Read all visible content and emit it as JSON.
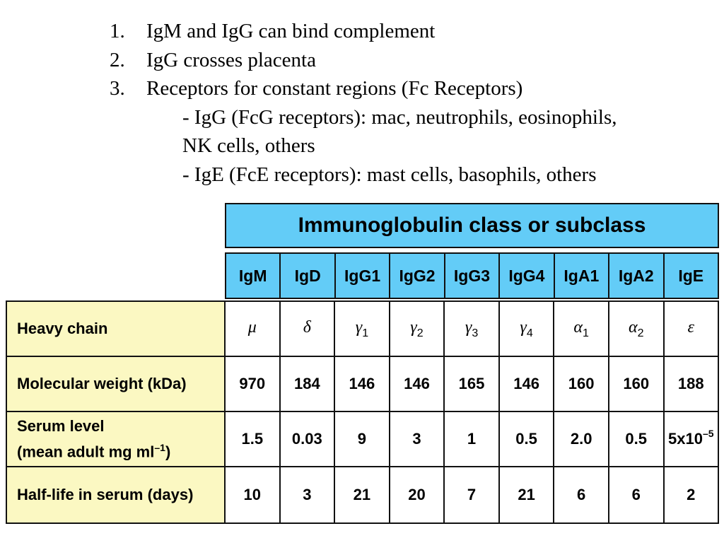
{
  "bullets": [
    {
      "num": "1.",
      "text": "IgM and IgG can bind complement"
    },
    {
      "num": "2.",
      "text": "IgG crosses placenta"
    },
    {
      "num": "3.",
      "text": "Receptors for constant regions (Fc Receptors)"
    }
  ],
  "sub_lines": [
    "- IgG (FcG receptors): mac, neutrophils, eosinophils,",
    "NK cells, others",
    "- IgE (FcE receptors): mast cells, basophils, others"
  ],
  "table": {
    "title": "Immunoglobulin class or subclass",
    "columns": [
      "IgM",
      "IgD",
      "IgG1",
      "IgG2",
      "IgG3",
      "IgG4",
      "IgA1",
      "IgA2",
      "IgE"
    ],
    "heavy_chain": {
      "label": "Heavy chain",
      "values": [
        {
          "sym": "μ",
          "sub": ""
        },
        {
          "sym": "δ",
          "sub": ""
        },
        {
          "sym": "γ",
          "sub": "1"
        },
        {
          "sym": "γ",
          "sub": "2"
        },
        {
          "sym": "γ",
          "sub": "3"
        },
        {
          "sym": "γ",
          "sub": "4"
        },
        {
          "sym": "α",
          "sub": "1"
        },
        {
          "sym": "α",
          "sub": "2"
        },
        {
          "sym": "ε",
          "sub": ""
        }
      ]
    },
    "molecular_weight": {
      "label": "Molecular weight (kDa)",
      "values": [
        "970",
        "184",
        "146",
        "146",
        "165",
        "146",
        "160",
        "160",
        "188"
      ]
    },
    "serum_level": {
      "label_line1": "Serum level",
      "label_line2": "(mean adult mg ml",
      "label_sup": "–1",
      "label_close": ")",
      "values": [
        "1.5",
        "0.03",
        "9",
        "3",
        "1",
        "0.5",
        "2.0",
        "0.5",
        "5x10"
      ],
      "ige_sup": "–5"
    },
    "half_life": {
      "label": "Half-life in serum (days)",
      "values": [
        "10",
        "3",
        "21",
        "20",
        "7",
        "21",
        "6",
        "6",
        "2"
      ]
    }
  }
}
